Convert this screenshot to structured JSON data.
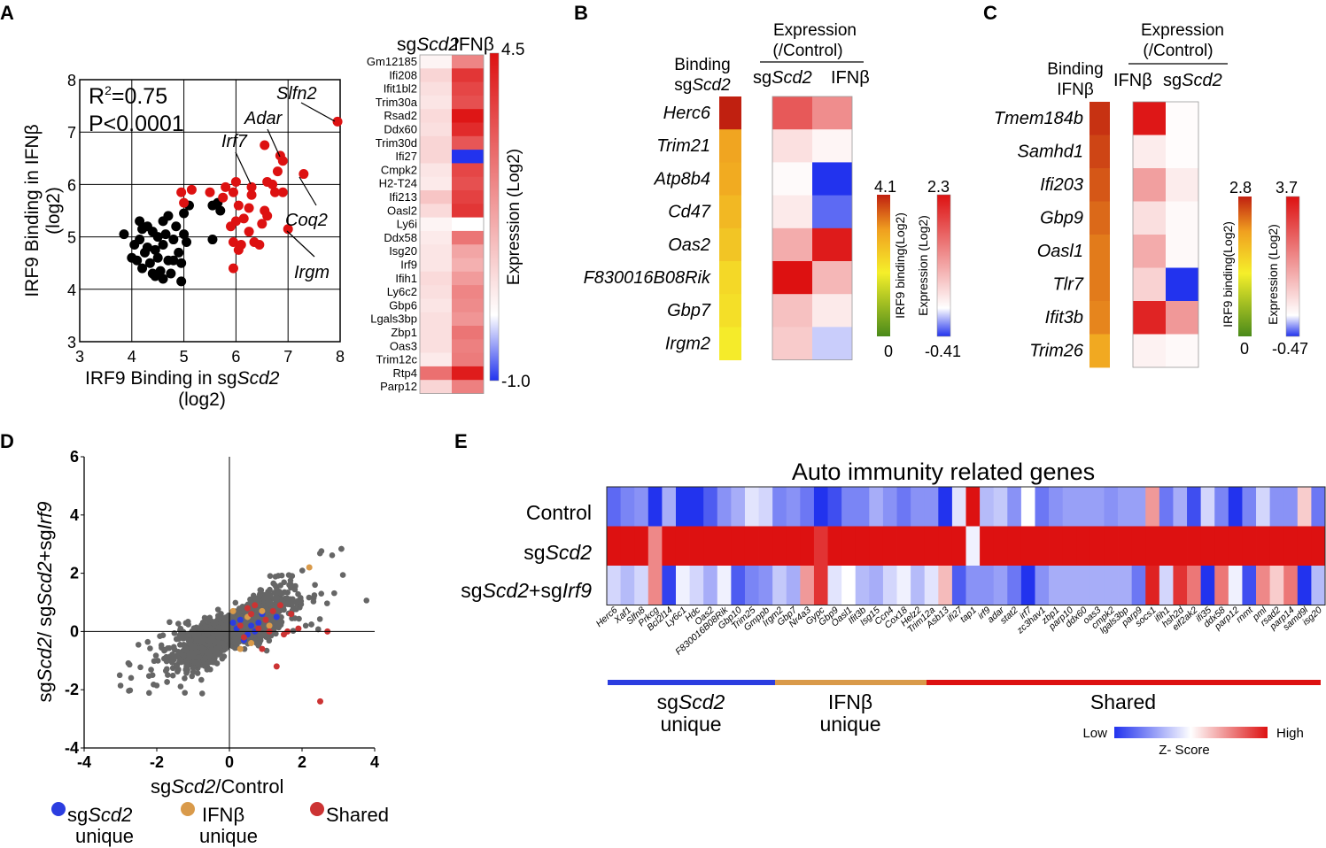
{
  "panels": {
    "a": "A",
    "b": "B",
    "c": "C",
    "d": "D",
    "e": "E"
  },
  "colors": {
    "red": "#dd1111",
    "blue": "#2233ee",
    "black": "#000000",
    "scatter_gray": "#666666",
    "sg_unique": "#2b3de0",
    "ifn_unique": "#d99a4a",
    "shared": "#cc3333"
  },
  "chart_data": [
    {
      "type": "scatter",
      "title": "",
      "xlabel": {
        "prefix": "IRF9 Binding in sg",
        "italic": "Scd2",
        "unit": "(log2)"
      },
      "ylabel": {
        "main": "IRF9 Binding in IFNβ",
        "unit": "(log2)"
      },
      "xlim": [
        3,
        8
      ],
      "ylim": [
        3,
        8
      ],
      "xticks": [
        "3",
        "4",
        "5",
        "6",
        "7",
        "8"
      ],
      "yticks": [
        "3",
        "4",
        "5",
        "6",
        "7",
        "8"
      ],
      "grid": true,
      "stats": {
        "r2_prefix": "R",
        "r2_sup": "2",
        "r2_value": "=0.75",
        "p": "P<0.0001"
      },
      "annotations": [
        "Slfn2",
        "Adar",
        "Irf7",
        "Coq2",
        "Irgm"
      ],
      "series": [
        {
          "name": "black",
          "color": "#000000",
          "points": [
            [
              3.85,
              5.05
            ],
            [
              4.0,
              4.6
            ],
            [
              4.05,
              4.85
            ],
            [
              4.1,
              4.55
            ],
            [
              4.15,
              4.95
            ],
            [
              4.2,
              4.4
            ],
            [
              4.25,
              4.7
            ],
            [
              4.3,
              5.2
            ],
            [
              4.35,
              4.5
            ],
            [
              4.4,
              4.3
            ],
            [
              4.45,
              4.75
            ],
            [
              4.5,
              5.0
            ],
            [
              4.5,
              4.6
            ],
            [
              4.55,
              4.35
            ],
            [
              4.6,
              4.85
            ],
            [
              4.6,
              5.3
            ],
            [
              4.65,
              5.05
            ],
            [
              4.7,
              4.55
            ],
            [
              4.75,
              4.3
            ],
            [
              4.8,
              4.95
            ],
            [
              4.85,
              5.2
            ],
            [
              4.9,
              4.7
            ],
            [
              4.95,
              4.5
            ],
            [
              5.0,
              5.05
            ],
            [
              5.0,
              5.45
            ],
            [
              5.05,
              4.9
            ],
            [
              4.4,
              5.1
            ],
            [
              4.3,
              4.8
            ],
            [
              4.2,
              5.15
            ],
            [
              4.7,
              5.4
            ],
            [
              5.55,
              4.95
            ],
            [
              5.55,
              5.6
            ],
            [
              5.7,
              5.5
            ],
            [
              5.65,
              5.65
            ],
            [
              5.1,
              5.6
            ],
            [
              4.15,
              5.3
            ],
            [
              4.8,
              4.55
            ],
            [
              4.95,
              4.15
            ],
            [
              4.45,
              4.25
            ],
            [
              4.6,
              4.2
            ]
          ]
        },
        {
          "name": "red",
          "color": "#dd1111",
          "points": [
            [
              4.95,
              5.85
            ],
            [
              5.15,
              5.9
            ],
            [
              5.0,
              5.65
            ],
            [
              5.5,
              5.85
            ],
            [
              5.75,
              5.75
            ],
            [
              5.8,
              5.95
            ],
            [
              5.9,
              5.2
            ],
            [
              5.95,
              5.85
            ],
            [
              6.0,
              6.05
            ],
            [
              6.05,
              5.6
            ],
            [
              5.95,
              4.9
            ],
            [
              6.05,
              4.75
            ],
            [
              6.1,
              4.85
            ],
            [
              6.0,
              5.3
            ],
            [
              6.15,
              5.35
            ],
            [
              6.25,
              5.1
            ],
            [
              6.25,
              5.55
            ],
            [
              6.3,
              5.8
            ],
            [
              6.3,
              5.95
            ],
            [
              6.35,
              4.9
            ],
            [
              6.45,
              4.85
            ],
            [
              6.5,
              5.25
            ],
            [
              6.55,
              5.5
            ],
            [
              6.6,
              6.05
            ],
            [
              6.6,
              5.4
            ],
            [
              6.7,
              6.0
            ],
            [
              6.75,
              5.85
            ],
            [
              6.8,
              6.25
            ],
            [
              6.85,
              6.55
            ],
            [
              6.9,
              6.45
            ],
            [
              6.9,
              5.85
            ],
            [
              7.0,
              5.15
            ],
            [
              6.55,
              6.75
            ],
            [
              7.3,
              6.2
            ],
            [
              7.95,
              7.2
            ],
            [
              5.95,
              4.4
            ]
          ]
        }
      ]
    },
    {
      "type": "heatmap",
      "title": "",
      "columns": [
        {
          "prefix": "sg",
          "italic": "Scd2"
        },
        {
          "label": "IFNβ"
        }
      ],
      "rows": [
        "Gm12185",
        "Ifi208",
        "Ifit1bl2",
        "Trim30a",
        "Rsad2",
        "Ddx60",
        "Trim30d",
        "Ifi27",
        "Cmpk2",
        "H2-T24",
        "Ifi213",
        "Oasl2",
        "Ly6i",
        "Ddx58",
        "Isg20",
        "Irf9",
        "Ifih1",
        "Ly6c2",
        "Gbp6",
        "Lgals3bp",
        "Zbp1",
        "Oas3",
        "Trim12c",
        "Rtp4",
        "Parp12"
      ],
      "values": [
        [
          0.2,
          2.3
        ],
        [
          0.8,
          3.8
        ],
        [
          0.6,
          3.5
        ],
        [
          0.5,
          3.3
        ],
        [
          0.7,
          4.4
        ],
        [
          0.6,
          4.0
        ],
        [
          0.8,
          3.2
        ],
        [
          0.8,
          -1.0
        ],
        [
          0.5,
          3.5
        ],
        [
          0.4,
          3.3
        ],
        [
          1.1,
          3.6
        ],
        [
          0.7,
          3.8
        ],
        [
          0.2,
          0.0
        ],
        [
          0.4,
          2.6
        ],
        [
          0.5,
          1.7
        ],
        [
          0.5,
          1.5
        ],
        [
          0.7,
          1.9
        ],
        [
          0.6,
          2.3
        ],
        [
          0.5,
          2.2
        ],
        [
          0.6,
          2.0
        ],
        [
          0.6,
          2.6
        ],
        [
          0.6,
          2.4
        ],
        [
          0.4,
          2.5
        ],
        [
          2.7,
          4.3
        ],
        [
          0.8,
          2.4
        ]
      ],
      "colorbar": {
        "min": -1.0,
        "max": 4.5,
        "min_label": "-1.0",
        "max_label": "4.5",
        "label": "Expression (Log2)"
      }
    },
    {
      "type": "heatmap",
      "title": "",
      "expression_title": {
        "line1": "Expression",
        "line2": "(/Control)"
      },
      "binding_title": {
        "line1": "Binding",
        "prefix": "sg",
        "italic": "Scd2"
      },
      "expression_columns": [
        {
          "prefix": "sg",
          "italic": "Scd2"
        },
        {
          "label": "IFNβ"
        }
      ],
      "rows": [
        "Herc6",
        "Trim21",
        "Atp8b4",
        "Cd47",
        "Oas2",
        "F830016B08Rik",
        "Gbp7",
        "Irgm2"
      ],
      "binding": [
        4.1,
        3.0,
        2.9,
        2.7,
        2.5,
        2.2,
        2.1,
        1.9
      ],
      "expression": [
        [
          1.6,
          1.1
        ],
        [
          0.3,
          0.1
        ],
        [
          0.05,
          -0.41
        ],
        [
          0.2,
          -0.3
        ],
        [
          0.8,
          2.2
        ],
        [
          2.3,
          0.7
        ],
        [
          0.6,
          0.2
        ],
        [
          0.5,
          -0.1
        ]
      ],
      "binding_colorbar": {
        "min": 0,
        "max": 4.1,
        "min_label": "0",
        "max_label": "4.1",
        "label": "IRF9 binding(Log2)"
      },
      "expression_colorbar": {
        "min": -0.41,
        "max": 2.3,
        "min_label": "-0.41",
        "max_label": "2.3",
        "label": "Expression (Log2)"
      }
    },
    {
      "type": "heatmap",
      "title": "",
      "expression_title": {
        "line1": "Expression",
        "line2": "(/Control)"
      },
      "binding_title": {
        "line1": "Binding",
        "line2": "IFNβ"
      },
      "expression_columns": [
        {
          "label": "IFNβ"
        },
        {
          "prefix": "sg",
          "italic": "Scd2"
        }
      ],
      "rows": [
        "Tmem184b",
        "Samhd1",
        "Ifi203",
        "Gbp9",
        "Oasl1",
        "Tlr7",
        "Ifit3b",
        "Trim26"
      ],
      "binding": [
        2.7,
        2.6,
        2.5,
        2.4,
        2.3,
        2.3,
        2.25,
        2.0
      ],
      "expression": [
        [
          3.6,
          0.05
        ],
        [
          0.3,
          0.05
        ],
        [
          1.5,
          0.3
        ],
        [
          0.5,
          0.1
        ],
        [
          1.3,
          0.1
        ],
        [
          0.7,
          -0.47
        ],
        [
          3.4,
          1.6
        ],
        [
          0.2,
          0.1
        ]
      ],
      "binding_colorbar": {
        "min": 0,
        "max": 2.8,
        "min_label": "0",
        "max_label": "2.8",
        "label": "IRF9 binding(Log2)"
      },
      "expression_colorbar": {
        "min": -0.47,
        "max": 3.7,
        "min_label": "-0.47",
        "max_label": "3.7",
        "label": "Expression (Log2)"
      }
    },
    {
      "type": "scatter",
      "title": "",
      "xlabel": {
        "prefix": "sg",
        "italic": "Scd2",
        "suffix": "/Control"
      },
      "ylabel": {
        "p1": "sg",
        "i1": "Scd2",
        "p2": "/ sg",
        "i2": "Scd2",
        "p3": "+sg",
        "i3": "Irf9"
      },
      "xlim": [
        -4,
        4
      ],
      "ylim": [
        -4,
        6
      ],
      "xticks": [
        "-4",
        "-2",
        "0",
        "2",
        "4"
      ],
      "yticks": [
        "-4",
        "-2",
        "0",
        "2",
        "4",
        "6"
      ],
      "legend": [
        {
          "prefix": "sg",
          "italic": "Scd2",
          "line2": "unique"
        },
        {
          "label": "IFNβ",
          "line2": "unique"
        },
        {
          "label": "Shared"
        }
      ],
      "background_points": {
        "count": 3500,
        "slope": 0.6,
        "spread": 0.5,
        "color": "#666666"
      },
      "highlight_points": {
        "sg_unique": [
          [
            0.3,
            0.4
          ],
          [
            0.6,
            0.2
          ],
          [
            0.9,
            0.6
          ],
          [
            0.5,
            -0.1
          ],
          [
            0.2,
            0.1
          ],
          [
            0.7,
            0.0
          ],
          [
            0.4,
            -0.3
          ],
          [
            0.8,
            0.3
          ],
          [
            1.3,
            0.5
          ],
          [
            0.1,
            0.3
          ]
        ],
        "ifn_unique": [
          [
            0.5,
            0.5
          ],
          [
            0.9,
            0.7
          ],
          [
            0.3,
            -0.6
          ],
          [
            1.1,
            0.2
          ],
          [
            2.2,
            2.2
          ],
          [
            0.6,
            -0.4
          ],
          [
            0.1,
            0.7
          ]
        ],
        "shared": [
          [
            0.3,
            0.2
          ],
          [
            0.6,
            0.6
          ],
          [
            0.8,
            0.1
          ],
          [
            1.0,
            0.4
          ],
          [
            1.2,
            0.7
          ],
          [
            1.4,
            0.9
          ],
          [
            1.6,
            0.0
          ],
          [
            1.9,
            0.1
          ],
          [
            2.5,
            -2.4
          ],
          [
            1.1,
            0.0
          ],
          [
            0.4,
            -0.2
          ],
          [
            0.9,
            -0.6
          ],
          [
            1.3,
            -1.2
          ],
          [
            0.7,
            0.9
          ],
          [
            2.7,
            0.0
          ],
          [
            1.7,
            0.6
          ],
          [
            0.5,
            0.8
          ],
          [
            1.5,
            -0.1
          ]
        ]
      }
    },
    {
      "type": "heatmap",
      "title": "Auto immunity related genes",
      "rows": [
        {
          "label": "Control"
        },
        {
          "prefix": "sg",
          "italic": "Scd2"
        },
        {
          "p1": "sg",
          "i1": "Scd2",
          "p2": "+sg",
          "i2": "Irf9"
        }
      ],
      "genes": [
        "Herc6",
        "Xaf1",
        "Slfn8",
        "Prkcg",
        "Bcl2l14",
        "Ly6c1",
        "Hdc",
        "Oas2",
        "F830016B08Rik",
        "Gbp10",
        "Trim25",
        "Gmppb",
        "Irgm2",
        "Gbp7",
        "Nr4a3",
        "Gypc",
        "Gbp9",
        "Oasl1",
        "Ifit3b",
        "Isg15",
        "Ccn4",
        "Cox18",
        "Helz2",
        "Trim12a",
        "Asb13",
        "ifi27",
        "tap1",
        "irf9",
        "adar",
        "stat2",
        "irf7",
        "zc3hav1",
        "zbp1",
        "parp10",
        "ddx60",
        "oas3",
        "cmpk2",
        "lgals3bp",
        "parp9",
        "socs1",
        "ifih1",
        "hsh2d",
        "eif2ak2",
        "ifi35",
        "ddx58",
        "parp12",
        "rnmt",
        "pml",
        "rsad2",
        "parp14",
        "samd9l",
        "isg20"
      ],
      "values": [
        [
          -1.1,
          -0.9,
          -0.8,
          -1.5,
          -0.6,
          -1.5,
          -1.5,
          -1.2,
          -0.8,
          -0.6,
          -0.2,
          -0.3,
          -0.9,
          -0.8,
          -1.0,
          -1.6,
          -1.3,
          -0.9,
          -0.9,
          -0.6,
          -0.8,
          -1.0,
          -0.8,
          -0.8,
          -1.5,
          -0.2,
          1.4,
          -0.5,
          -0.4,
          -0.8,
          0.0,
          -1.0,
          -0.8,
          -0.7,
          -0.7,
          -0.7,
          -0.8,
          -0.7,
          -0.7,
          0.6,
          -1.0,
          -0.6,
          -1.3,
          -0.3,
          -0.9,
          -1.5,
          -0.9,
          -0.3,
          -0.8,
          -0.8,
          0.3,
          -1.0
        ],
        [
          1.4,
          1.4,
          1.4,
          0.7,
          1.4,
          1.4,
          1.4,
          1.4,
          1.4,
          1.4,
          1.4,
          1.4,
          1.4,
          1.4,
          1.4,
          1.2,
          1.4,
          1.4,
          1.4,
          1.4,
          1.4,
          1.4,
          1.4,
          1.4,
          1.4,
          1.4,
          -0.1,
          1.4,
          1.4,
          1.4,
          1.4,
          1.4,
          1.4,
          1.4,
          1.4,
          1.4,
          1.4,
          1.4,
          1.4,
          1.4,
          1.4,
          1.4,
          1.4,
          1.4,
          1.4,
          1.4,
          1.4,
          1.4,
          1.4,
          1.4,
          1.4,
          1.4
        ],
        [
          -0.3,
          -0.5,
          -0.3,
          0.7,
          -1.4,
          -0.1,
          -0.3,
          -0.6,
          -0.1,
          -1.2,
          -0.9,
          -0.8,
          -0.4,
          -0.6,
          0.6,
          1.2,
          -0.2,
          0.0,
          -0.5,
          -0.6,
          -0.3,
          -0.1,
          -0.5,
          -0.2,
          0.4,
          -1.2,
          -0.8,
          -0.8,
          -0.7,
          -1.0,
          -1.5,
          -0.8,
          -0.6,
          -0.6,
          -0.6,
          -0.6,
          -0.6,
          -0.6,
          -1.0,
          1.3,
          -0.3,
          1.2,
          0.8,
          -1.5,
          0.8,
          -0.1,
          -1.3,
          0.7,
          0.3,
          0.8,
          -1.5,
          -0.5
        ]
      ],
      "groups": [
        {
          "prefix": "sg",
          "italic": "Scd2",
          "line2": "unique"
        },
        {
          "label": "IFNβ",
          "line2": "unique"
        },
        {
          "label": "Shared"
        }
      ],
      "zscore": {
        "low": "Low",
        "high": "High",
        "label": "Z- Score"
      }
    }
  ]
}
